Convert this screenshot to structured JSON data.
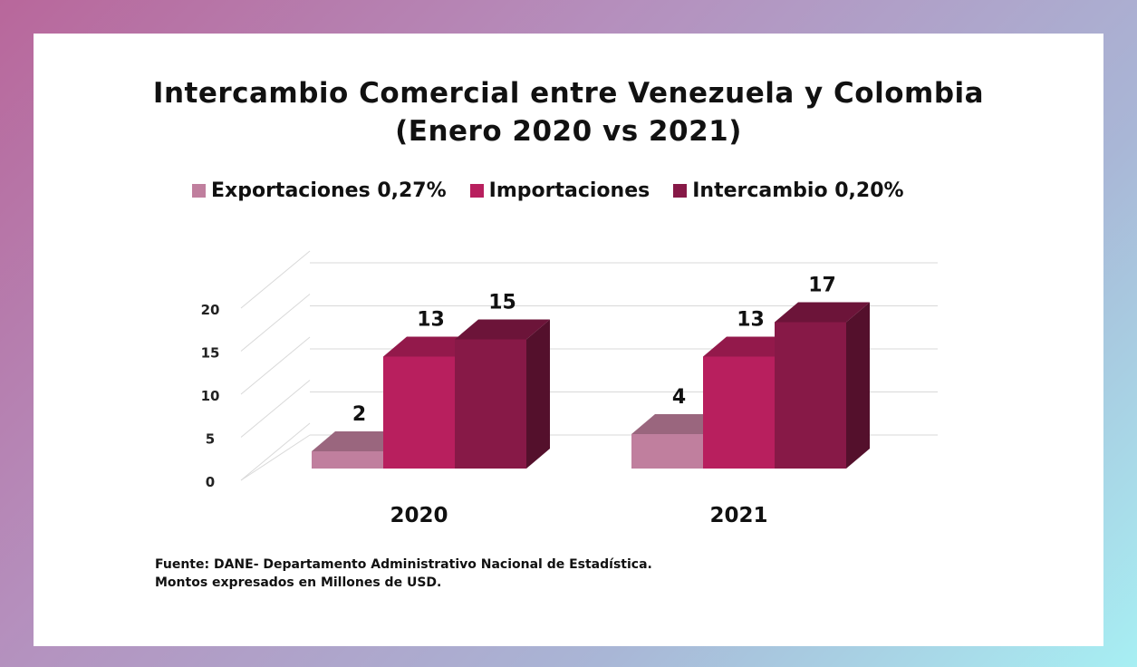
{
  "chart_data": {
    "type": "bar",
    "title": "Intercambio Comercial entre Venezuela y Colombia",
    "subtitle": "(Enero 2020 vs 2021)",
    "categories": [
      "2020",
      "2021"
    ],
    "series": [
      {
        "name": "Exportaciones 0,27%",
        "values": [
          2,
          4
        ],
        "color": "#c07f9e"
      },
      {
        "name": "Importaciones",
        "values": [
          13,
          13
        ],
        "color": "#b81f5e"
      },
      {
        "name": "Intercambio 0,20%",
        "values": [
          15,
          17
        ],
        "color": "#871947"
      }
    ],
    "yticks": [
      "0",
      "5",
      "10",
      "15",
      "20"
    ],
    "ylim": [
      0,
      20
    ],
    "legend_position": "top",
    "grid": true,
    "three_d": true
  },
  "source": {
    "line1": "Fuente: DANE- Departamento Administrativo Nacional de Estadística.",
    "line2": "Montos expresados en Millones de USD."
  }
}
